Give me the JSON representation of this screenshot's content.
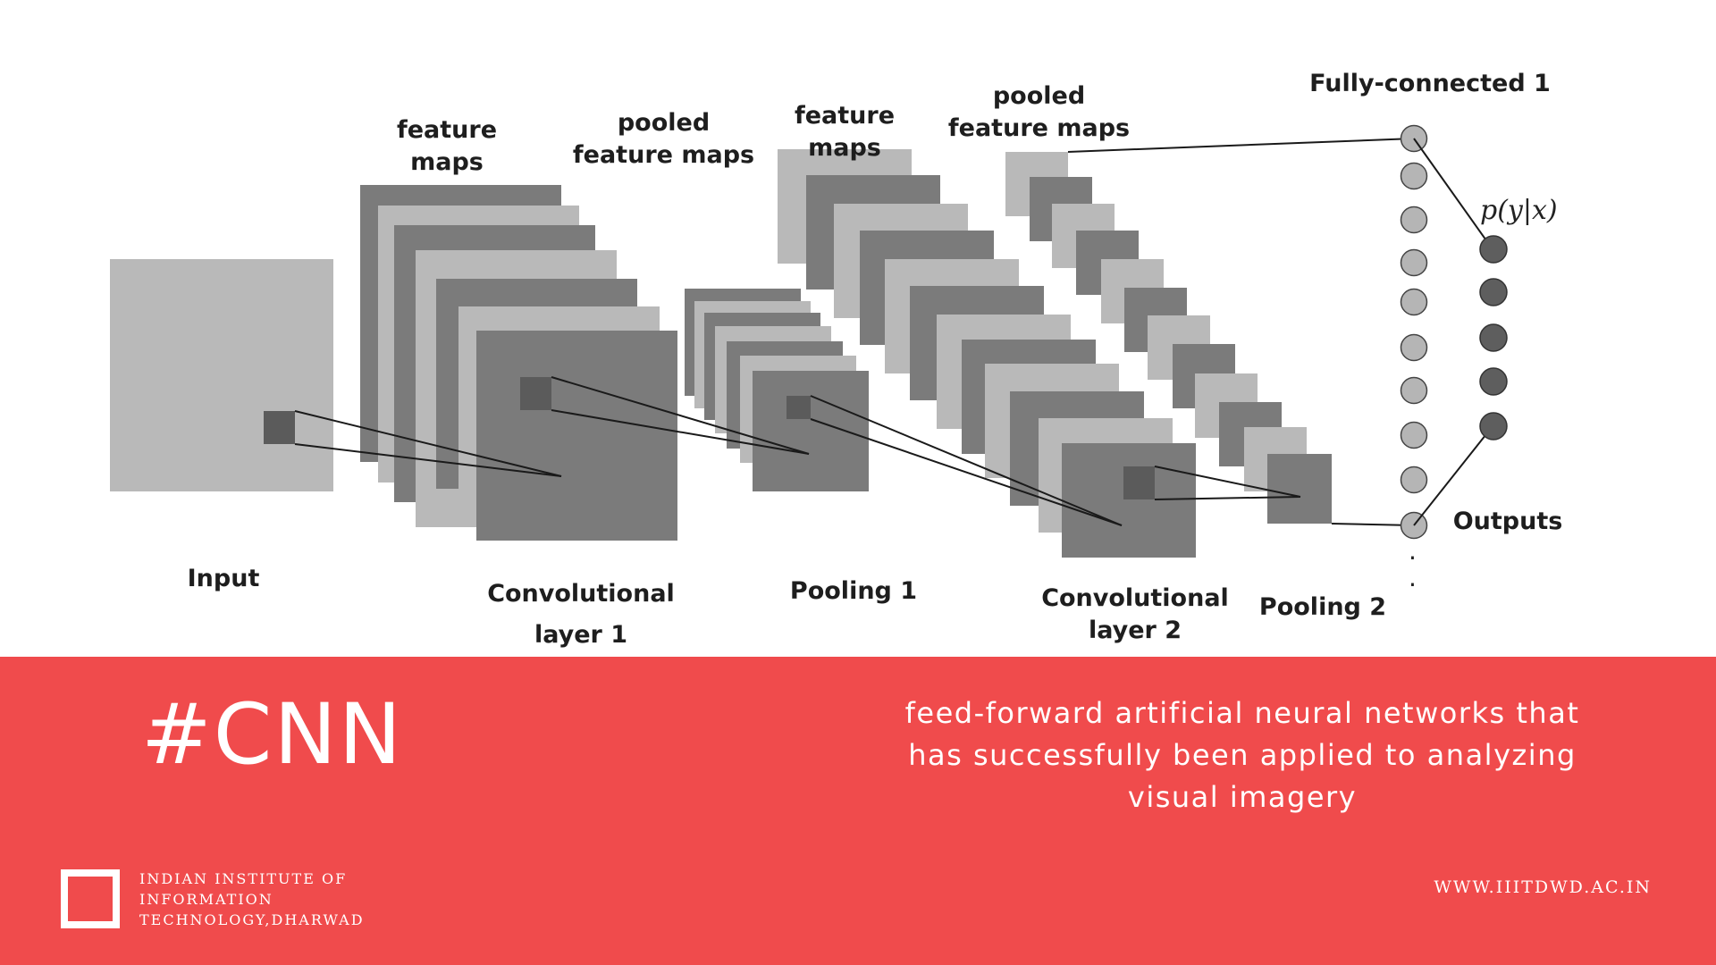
{
  "diagram": {
    "labels": {
      "input": "Input",
      "conv1": "Convolutional\nlayer 1",
      "pool1": "Pooling 1",
      "conv2": "Convolutional\nlayer 2",
      "pool2": "Pooling 2",
      "feature_maps_1": "feature maps",
      "pooled_feature_maps_1": "pooled\nfeature maps",
      "feature_maps_2": "feature maps",
      "pooled_feature_maps_2": "pooled\nfeature maps",
      "fully_connected": "Fully-connected 1",
      "outputs": "Outputs",
      "probability": "p(y|x)",
      "ellipsis": "·\n·"
    },
    "colors": {
      "light": "#b9b9b9",
      "dark": "#7b7b7b",
      "receptive_field": "#5b5b5b",
      "fc_node": "#b5b5b5",
      "output_node": "#5e5e5e"
    }
  },
  "footer": {
    "hashtag": "#CNN",
    "description": "feed-forward artificial neural networks that has successfully been applied to analyzing visual imagery",
    "institute_lines": [
      "INDIAN INSTITUTE OF",
      "INFORMATION",
      "TECHNOLOGY,DHARWAD"
    ],
    "website": "WWW.IIITDWD.AC.IN",
    "background_color": "#f04b4c",
    "logo_icon": "square-outline-icon"
  }
}
